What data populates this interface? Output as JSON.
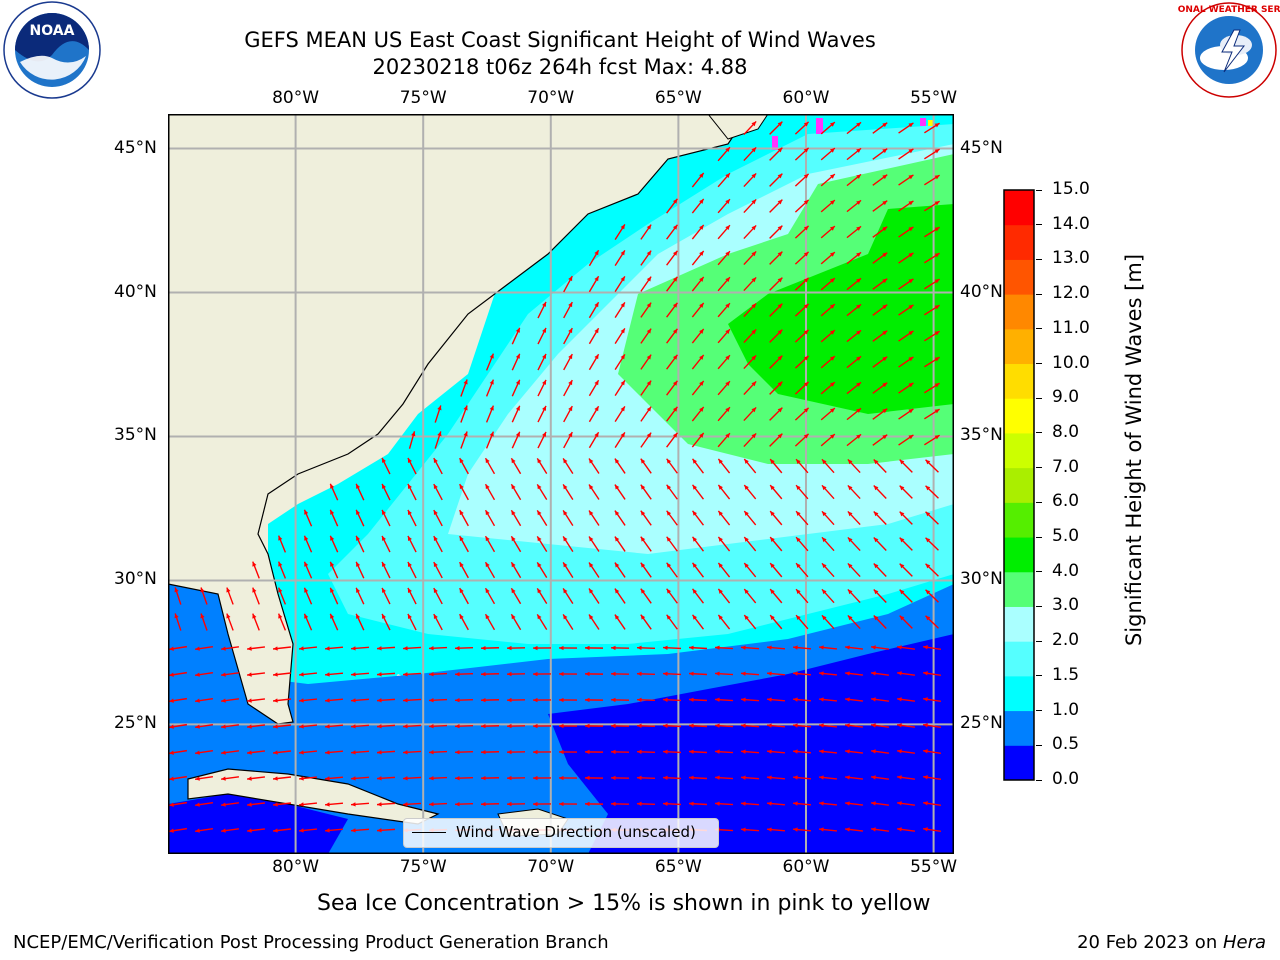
{
  "title": {
    "line1": "GEFS MEAN US East Coast Significant Height of Wind Waves",
    "line2": "20230218 t06z 264h fcst   Max: 4.88"
  },
  "logos": {
    "left": {
      "text": "NOAA",
      "ring": "NATIONAL OCEANIC AND ATMOSPHERIC ADMINISTRATION · U.S. DEPARTMENT OF COMMERCE"
    },
    "right": {
      "ring": "NATIONAL WEATHER SERVICE"
    }
  },
  "map": {
    "lon_ticks": [
      "80°W",
      "75°W",
      "70°W",
      "65°W",
      "60°W",
      "55°W"
    ],
    "lat_ticks": [
      "45°N",
      "40°N",
      "35°N",
      "30°N",
      "25°N"
    ],
    "extent": {
      "lon": [
        -85,
        -54.2
      ],
      "lat": [
        20.5,
        46.2
      ]
    },
    "colors": {
      "land": "#efefdc",
      "coast": "#000000",
      "grid": "#b0b0b0",
      "arrow": "#ff0000"
    }
  },
  "legend": {
    "label": "Wind Wave Direction (unscaled)"
  },
  "colorbar": {
    "label": "Significant Height of Wind Waves [m]",
    "ticks": [
      "0.0",
      "0.5",
      "1.0",
      "1.5",
      "2.0",
      "3.0",
      "4.0",
      "5.0",
      "6.0",
      "7.0",
      "8.0",
      "9.0",
      "10.0",
      "11.0",
      "12.0",
      "13.0",
      "14.0",
      "15.0"
    ],
    "colors": [
      "#0000ff",
      "#0080ff",
      "#00ffff",
      "#55ffff",
      "#aaffff",
      "#55ff77",
      "#00ee00",
      "#55ee00",
      "#aaee00",
      "#ccff00",
      "#ffff00",
      "#ffdd00",
      "#ffb000",
      "#ff8800",
      "#ff5500",
      "#ff2a00",
      "#ff0000"
    ]
  },
  "footer": {
    "sea_ice": "Sea Ice Concentration > 15% is shown in pink to yellow",
    "left": "NCEP/EMC/Verification Post Processing Product Generation Branch",
    "right_prefix": "20 Feb 2023 on ",
    "right_host": "Hera"
  }
}
